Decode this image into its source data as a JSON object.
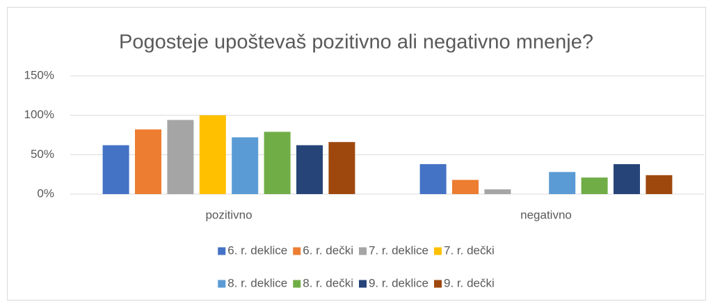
{
  "chart_data": {
    "type": "bar",
    "title": "Pogosteje upoštevaš pozitivno ali negativno mnenje?",
    "categories": [
      "pozitivno",
      "negativno"
    ],
    "series": [
      {
        "name": "6. r. deklice",
        "color": "#4472c4",
        "values": [
          62,
          38
        ]
      },
      {
        "name": "6. r. dečki",
        "color": "#ed7d31",
        "values": [
          82,
          18
        ]
      },
      {
        "name": "7. r. deklice",
        "color": "#a5a5a5",
        "values": [
          94,
          6
        ]
      },
      {
        "name": "7. r. dečki",
        "color": "#ffc000",
        "values": [
          100,
          0
        ]
      },
      {
        "name": "8. r. deklice",
        "color": "#5b9bd5",
        "values": [
          72,
          28
        ]
      },
      {
        "name": "8. r. dečki",
        "color": "#70ad47",
        "values": [
          79,
          21
        ]
      },
      {
        "name": "9. r. deklice",
        "color": "#264478",
        "values": [
          62,
          38
        ]
      },
      {
        "name": "9. r. dečki",
        "color": "#9e480e",
        "values": [
          66,
          24
        ]
      }
    ],
    "ylim": [
      0,
      150
    ],
    "yticks": [
      {
        "value": 0,
        "label": "0%"
      },
      {
        "value": 50,
        "label": "50%"
      },
      {
        "value": 100,
        "label": "100%"
      },
      {
        "value": 150,
        "label": "150%"
      }
    ],
    "grid": true,
    "legend": "bottom"
  }
}
